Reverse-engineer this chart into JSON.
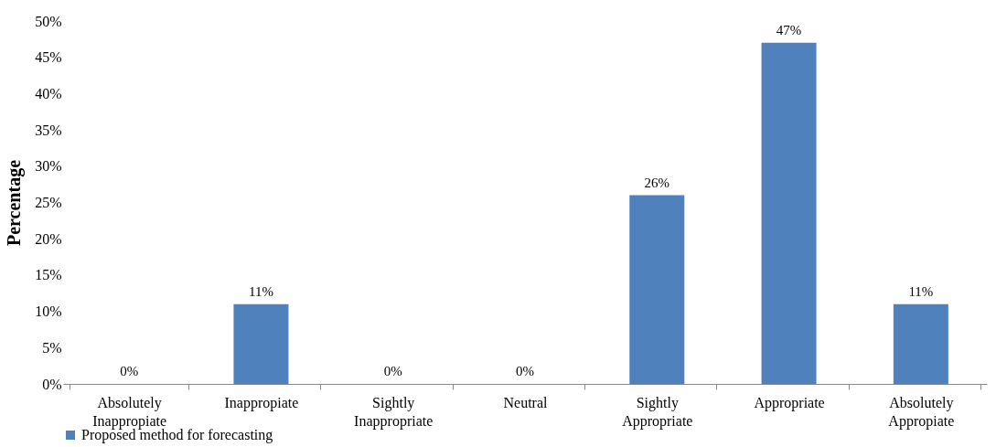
{
  "chart_data": {
    "type": "bar",
    "ylabel": "Percentage",
    "categories": [
      "Absolutely Inappropiate",
      "Inappropiate",
      "Sightly Inappropriate",
      "Neutral",
      "Sightly Appropriate",
      "Appropriate",
      "Absolutely Appropiate"
    ],
    "series": [
      {
        "name": "Proposed method for forecasting",
        "color": "#4f81bd",
        "values": [
          0,
          11,
          0,
          0,
          26,
          47,
          11
        ],
        "value_labels": [
          "0%",
          "11%",
          "0%",
          "0%",
          "26%",
          "47%",
          "11%"
        ]
      }
    ],
    "ylim": [
      0,
      50
    ],
    "yticks": [
      {
        "value": 0,
        "label": "0%"
      },
      {
        "value": 5,
        "label": "5%"
      },
      {
        "value": 10,
        "label": "10%"
      },
      {
        "value": 15,
        "label": "15%"
      },
      {
        "value": 20,
        "label": "20%"
      },
      {
        "value": 25,
        "label": "25%"
      },
      {
        "value": 30,
        "label": "30%"
      },
      {
        "value": 35,
        "label": "35%"
      },
      {
        "value": 40,
        "label": "40%"
      },
      {
        "value": 45,
        "label": "45%"
      },
      {
        "value": 50,
        "label": "50%"
      }
    ],
    "grid": false,
    "legend": "bottom"
  }
}
